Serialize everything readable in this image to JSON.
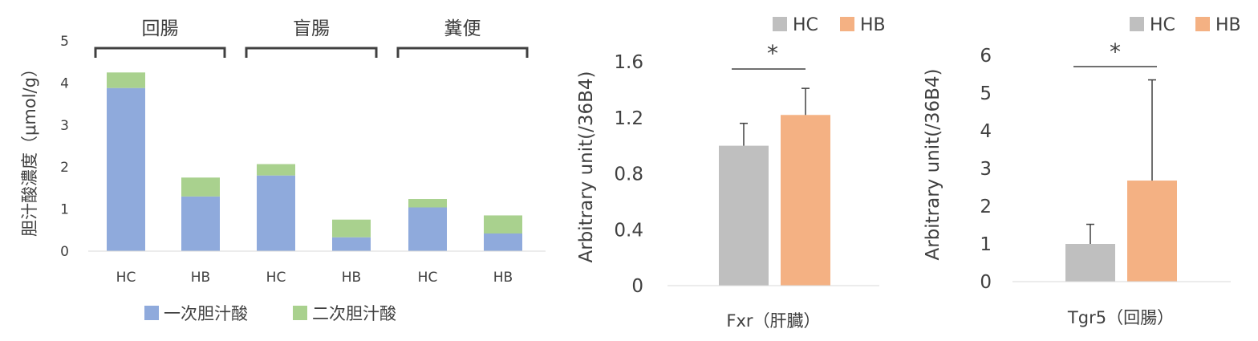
{
  "chart_data": [
    {
      "type": "bar",
      "stacked": true,
      "ylabel": "胆汁酸濃度（μmol/g）",
      "ylim": [
        0,
        5
      ],
      "yticks": [
        0,
        1,
        2,
        3,
        4,
        5
      ],
      "categories": [
        "HC",
        "HB",
        "HC",
        "HB",
        "HC",
        "HB"
      ],
      "groups": [
        {
          "label": "回腸",
          "categories": [
            "HC",
            "HB"
          ]
        },
        {
          "label": "盲腸",
          "categories": [
            "HC",
            "HB"
          ]
        },
        {
          "label": "糞便",
          "categories": [
            "HC",
            "HB"
          ]
        }
      ],
      "series": [
        {
          "name": "一次胆汁酸",
          "color": "#8faadc",
          "values": [
            3.88,
            1.3,
            1.8,
            0.33,
            1.04,
            0.42
          ]
        },
        {
          "name": "二次胆汁酸",
          "color": "#a9d18e",
          "values": [
            0.37,
            0.45,
            0.27,
            0.42,
            0.2,
            0.43
          ]
        }
      ],
      "legend": "bottom"
    },
    {
      "type": "bar",
      "xlabel": "Fxr（肝臓）",
      "ylabel": "Arbitrary unit(/36B4)",
      "ylim": [
        0,
        1.6
      ],
      "yticks": [
        "0",
        "0.4",
        "0.8",
        "1.2",
        "1.6"
      ],
      "series": [
        {
          "name": "HC",
          "color": "#bfbfbf",
          "value": 1.0,
          "error": 0.16
        },
        {
          "name": "HB",
          "color": "#f4b183",
          "value": 1.22,
          "error": 0.19
        }
      ],
      "significance": "*",
      "legend": "top"
    },
    {
      "type": "bar",
      "xlabel": "Tgr5（回腸）",
      "ylabel": "Arbitrary unit(/36B4)",
      "ylim": [
        0,
        6
      ],
      "yticks": [
        "0",
        "1",
        "2",
        "3",
        "4",
        "5",
        "6"
      ],
      "series": [
        {
          "name": "HC",
          "color": "#bfbfbf",
          "value": 1.0,
          "error": 0.52
        },
        {
          "name": "HB",
          "color": "#f4b183",
          "value": 2.68,
          "error": 2.67
        }
      ],
      "significance": "*",
      "legend": "top"
    }
  ]
}
